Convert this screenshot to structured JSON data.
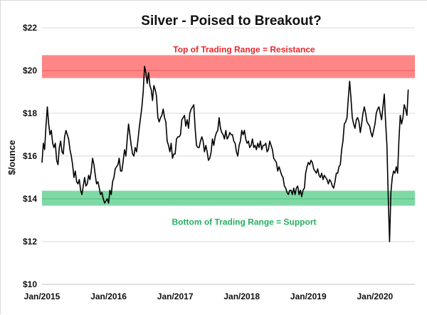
{
  "chart_data": {
    "type": "line",
    "title": "Silver - Poised to Breakout?",
    "xlabel": "",
    "ylabel": "$/ounce",
    "ylim": [
      10,
      22
    ],
    "x_range": [
      2015.0,
      2020.6
    ],
    "grid": true,
    "y_ticks": [
      {
        "value": 10,
        "label": "$10"
      },
      {
        "value": 12,
        "label": "$12"
      },
      {
        "value": 14,
        "label": "$14"
      },
      {
        "value": 16,
        "label": "$16"
      },
      {
        "value": 18,
        "label": "$18"
      },
      {
        "value": 20,
        "label": "$20"
      },
      {
        "value": 22,
        "label": "$22"
      }
    ],
    "x_ticks": [
      {
        "value": 2015.0,
        "label": "Jan/2015"
      },
      {
        "value": 2016.0,
        "label": "Jan/2016"
      },
      {
        "value": 2017.0,
        "label": "Jan/2017"
      },
      {
        "value": 2018.0,
        "label": "Jan/2018"
      },
      {
        "value": 2019.0,
        "label": "Jan/2019"
      },
      {
        "value": 2020.0,
        "label": "Jan/2020"
      }
    ],
    "bands": [
      {
        "name": "resistance-band",
        "label": "Top of Trading Range = Resistance",
        "y_from": 19.65,
        "y_to": 20.72,
        "center": 20.0,
        "fill": "#ff7f7f",
        "line": "#e85a5a",
        "text_color": "#e8262a",
        "label_position": "above"
      },
      {
        "name": "support-band",
        "label": "Bottom of Trading Range = Support",
        "y_from": 13.68,
        "y_to": 14.38,
        "center": 14.0,
        "fill": "#78d7a0",
        "line": "#4fc07f",
        "text_color": "#26b062",
        "label_position": "below"
      }
    ],
    "series": [
      {
        "name": "Silver price",
        "color": "#000000",
        "x": [
          2015.0,
          2015.02,
          2015.04,
          2015.06,
          2015.08,
          2015.1,
          2015.12,
          2015.14,
          2015.16,
          2015.18,
          2015.2,
          2015.22,
          2015.24,
          2015.26,
          2015.28,
          2015.3,
          2015.32,
          2015.34,
          2015.36,
          2015.38,
          2015.4,
          2015.42,
          2015.44,
          2015.46,
          2015.48,
          2015.5,
          2015.52,
          2015.54,
          2015.56,
          2015.58,
          2015.6,
          2015.62,
          2015.64,
          2015.66,
          2015.68,
          2015.7,
          2015.72,
          2015.74,
          2015.76,
          2015.78,
          2015.8,
          2015.82,
          2015.84,
          2015.86,
          2015.88,
          2015.9,
          2015.92,
          2015.94,
          2015.96,
          2015.98,
          2016.0,
          2016.02,
          2016.04,
          2016.06,
          2016.08,
          2016.1,
          2016.12,
          2016.14,
          2016.16,
          2016.18,
          2016.2,
          2016.22,
          2016.24,
          2016.26,
          2016.28,
          2016.3,
          2016.32,
          2016.34,
          2016.36,
          2016.38,
          2016.4,
          2016.42,
          2016.44,
          2016.46,
          2016.48,
          2016.5,
          2016.52,
          2016.54,
          2016.56,
          2016.58,
          2016.6,
          2016.62,
          2016.64,
          2016.66,
          2016.68,
          2016.7,
          2016.72,
          2016.74,
          2016.76,
          2016.78,
          2016.8,
          2016.82,
          2016.84,
          2016.86,
          2016.88,
          2016.9,
          2016.92,
          2016.94,
          2016.96,
          2016.98,
          2017.0,
          2017.02,
          2017.04,
          2017.06,
          2017.08,
          2017.1,
          2017.12,
          2017.14,
          2017.16,
          2017.18,
          2017.2,
          2017.22,
          2017.24,
          2017.26,
          2017.28,
          2017.3,
          2017.32,
          2017.34,
          2017.36,
          2017.38,
          2017.4,
          2017.42,
          2017.44,
          2017.46,
          2017.48,
          2017.5,
          2017.52,
          2017.54,
          2017.56,
          2017.58,
          2017.6,
          2017.62,
          2017.64,
          2017.66,
          2017.68,
          2017.7,
          2017.72,
          2017.74,
          2017.76,
          2017.78,
          2017.8,
          2017.82,
          2017.84,
          2017.86,
          2017.88,
          2017.9,
          2017.92,
          2017.94,
          2017.96,
          2017.98,
          2018.0,
          2018.02,
          2018.04,
          2018.06,
          2018.08,
          2018.1,
          2018.12,
          2018.14,
          2018.16,
          2018.18,
          2018.2,
          2018.22,
          2018.24,
          2018.26,
          2018.28,
          2018.3,
          2018.32,
          2018.34,
          2018.36,
          2018.38,
          2018.4,
          2018.42,
          2018.44,
          2018.46,
          2018.48,
          2018.5,
          2018.52,
          2018.54,
          2018.56,
          2018.58,
          2018.6,
          2018.62,
          2018.64,
          2018.66,
          2018.68,
          2018.7,
          2018.72,
          2018.74,
          2018.76,
          2018.78,
          2018.8,
          2018.82,
          2018.84,
          2018.86,
          2018.88,
          2018.9,
          2018.92,
          2018.94,
          2018.96,
          2018.98,
          2019.0,
          2019.02,
          2019.04,
          2019.06,
          2019.08,
          2019.1,
          2019.12,
          2019.14,
          2019.16,
          2019.18,
          2019.2,
          2019.22,
          2019.24,
          2019.26,
          2019.28,
          2019.3,
          2019.32,
          2019.34,
          2019.36,
          2019.38,
          2019.4,
          2019.42,
          2019.44,
          2019.46,
          2019.48,
          2019.5,
          2019.52,
          2019.54,
          2019.56,
          2019.58,
          2019.6,
          2019.62,
          2019.64,
          2019.66,
          2019.68,
          2019.7,
          2019.72,
          2019.74,
          2019.76,
          2019.78,
          2019.8,
          2019.82,
          2019.84,
          2019.86,
          2019.88,
          2019.9,
          2019.92,
          2019.94,
          2019.96,
          2019.98,
          2020.0,
          2020.02,
          2020.04,
          2020.06,
          2020.08,
          2020.1,
          2020.12,
          2020.14,
          2020.16,
          2020.18,
          2020.2,
          2020.22,
          2020.24,
          2020.26,
          2020.28,
          2020.3,
          2020.32,
          2020.34,
          2020.36,
          2020.38,
          2020.4,
          2020.42,
          2020.44,
          2020.46,
          2020.48,
          2020.5
        ],
        "y": [
          15.7,
          16.6,
          16.3,
          17.4,
          18.3,
          17.5,
          17.0,
          17.2,
          16.6,
          16.4,
          16.6,
          15.8,
          15.6,
          16.4,
          16.7,
          16.2,
          16.1,
          16.9,
          17.2,
          17.0,
          16.8,
          16.3,
          16.0,
          15.6,
          15.0,
          15.3,
          14.8,
          14.7,
          14.9,
          14.4,
          14.2,
          14.6,
          15.0,
          14.6,
          14.7,
          15.1,
          14.9,
          15.3,
          15.9,
          15.6,
          15.1,
          14.7,
          14.8,
          14.5,
          14.2,
          14.3,
          14.0,
          13.8,
          13.9,
          14.0,
          13.8,
          14.4,
          14.2,
          14.8,
          15.0,
          15.4,
          15.5,
          15.6,
          15.9,
          15.3,
          15.3,
          15.8,
          16.3,
          16.0,
          16.8,
          17.5,
          17.0,
          16.5,
          16.1,
          16.0,
          16.4,
          16.2,
          16.7,
          17.3,
          17.8,
          18.3,
          19.0,
          20.2,
          19.9,
          19.4,
          19.9,
          19.3,
          19.1,
          18.6,
          19.3,
          19.1,
          18.8,
          17.8,
          17.6,
          17.8,
          17.9,
          18.2,
          17.8,
          17.6,
          16.7,
          16.5,
          16.2,
          16.6,
          15.9,
          16.1,
          16.1,
          16.8,
          16.9,
          16.9,
          17.0,
          17.7,
          17.8,
          17.9,
          17.4,
          17.7,
          17.3,
          18.0,
          18.2,
          18.3,
          18.4,
          17.3,
          16.5,
          16.4,
          16.4,
          16.7,
          16.9,
          16.7,
          16.2,
          16.5,
          16.2,
          15.8,
          15.9,
          16.2,
          16.8,
          16.5,
          16.9,
          17.1,
          17.2,
          17.8,
          17.3,
          17.1,
          17.0,
          16.8,
          17.2,
          16.8,
          16.9,
          17.1,
          17.0,
          17.0,
          16.7,
          16.6,
          16.2,
          16.0,
          16.5,
          16.7,
          17.2,
          17.0,
          17.2,
          16.8,
          16.6,
          16.7,
          16.4,
          16.5,
          16.8,
          16.4,
          16.5,
          16.3,
          16.6,
          16.4,
          16.7,
          16.3,
          16.5,
          16.5,
          16.6,
          16.2,
          16.3,
          16.7,
          16.5,
          16.3,
          15.9,
          15.8,
          15.7,
          15.3,
          15.5,
          15.3,
          15.1,
          15.0,
          14.6,
          14.5,
          14.3,
          14.2,
          14.4,
          14.4,
          14.2,
          14.5,
          14.2,
          14.5,
          14.6,
          14.2,
          14.4,
          14.1,
          14.4,
          14.5,
          15.2,
          15.5,
          15.7,
          15.6,
          15.8,
          15.7,
          15.4,
          15.3,
          15.2,
          15.4,
          15.1,
          15.0,
          15.2,
          14.9,
          15.1,
          15.0,
          14.9,
          14.7,
          14.9,
          14.8,
          14.6,
          14.5,
          14.8,
          15.2,
          15.2,
          15.5,
          15.6,
          16.3,
          16.7,
          17.5,
          17.6,
          17.8,
          18.7,
          19.5,
          18.7,
          17.8,
          17.5,
          17.3,
          17.7,
          17.8,
          17.6,
          17.1,
          17.5,
          18.0,
          18.3,
          18.0,
          17.6,
          17.5,
          17.4,
          17.1,
          16.9,
          17.2,
          17.5,
          18.0,
          18.2,
          18.3,
          18.0,
          17.7,
          18.3,
          18.9,
          17.6,
          16.5,
          14.0,
          12.0,
          14.3,
          15.0,
          15.3,
          15.2,
          15.5,
          15.2,
          16.7,
          17.9,
          17.5,
          17.8,
          18.4,
          18.2,
          17.9,
          19.1
        ]
      }
    ]
  }
}
